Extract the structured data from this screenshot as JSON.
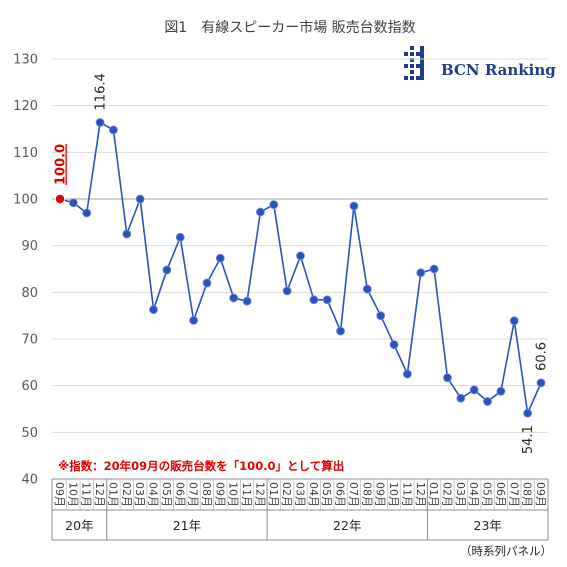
{
  "chart_data": {
    "type": "line",
    "title": "図1　有線スピーカー市場 販売台数指数",
    "logo_text": "BCN Ranking",
    "ylim": [
      40,
      130
    ],
    "yticks": [
      "130",
      "120",
      "110",
      "100",
      "90",
      "80",
      "70",
      "60",
      "50",
      "40"
    ],
    "grid": true,
    "x": [
      "09月",
      "10月",
      "11月",
      "12月",
      "01月",
      "02月",
      "03月",
      "04月",
      "05月",
      "06月",
      "07月",
      "08月",
      "09月",
      "10月",
      "11月",
      "12月",
      "01月",
      "02月",
      "03月",
      "04月",
      "05月",
      "06月",
      "07月",
      "08月",
      "09月",
      "10月",
      "11月",
      "12月",
      "01月",
      "02月",
      "03月",
      "04月",
      "05月",
      "06月",
      "07月",
      "08月",
      "09月"
    ],
    "year_groups": [
      {
        "label": "20年",
        "start": 0,
        "end": 3
      },
      {
        "label": "21年",
        "start": 4,
        "end": 15
      },
      {
        "label": "22年",
        "start": 16,
        "end": 27
      },
      {
        "label": "23年",
        "start": 28,
        "end": 36
      }
    ],
    "series": [
      {
        "values": [
          100.0,
          99.2,
          97.0,
          116.4,
          114.8,
          92.5,
          100.0,
          76.3,
          84.8,
          91.8,
          74.0,
          82.0,
          87.3,
          78.8,
          78.1,
          97.2,
          98.8,
          80.3,
          87.8,
          78.4,
          78.4,
          71.7,
          98.5,
          80.7,
          75.0,
          68.8,
          62.5,
          84.2,
          85.0,
          61.7,
          57.3,
          59.1,
          56.6,
          58.8,
          73.9,
          54.1,
          60.6
        ],
        "color": "#2a52be"
      }
    ],
    "highlight": {
      "index": 0,
      "label": "100.0",
      "color": "#e00000"
    },
    "data_labels": [
      {
        "index": 3,
        "text": "116.4",
        "position": "above"
      },
      {
        "index": 35,
        "text": "54.1",
        "position": "below"
      },
      {
        "index": 36,
        "text": "60.6",
        "position": "above"
      }
    ],
    "note": "※指数：20年09月の販売台数を「100.0」として算出",
    "panel_note": "（時系列パネル）"
  }
}
